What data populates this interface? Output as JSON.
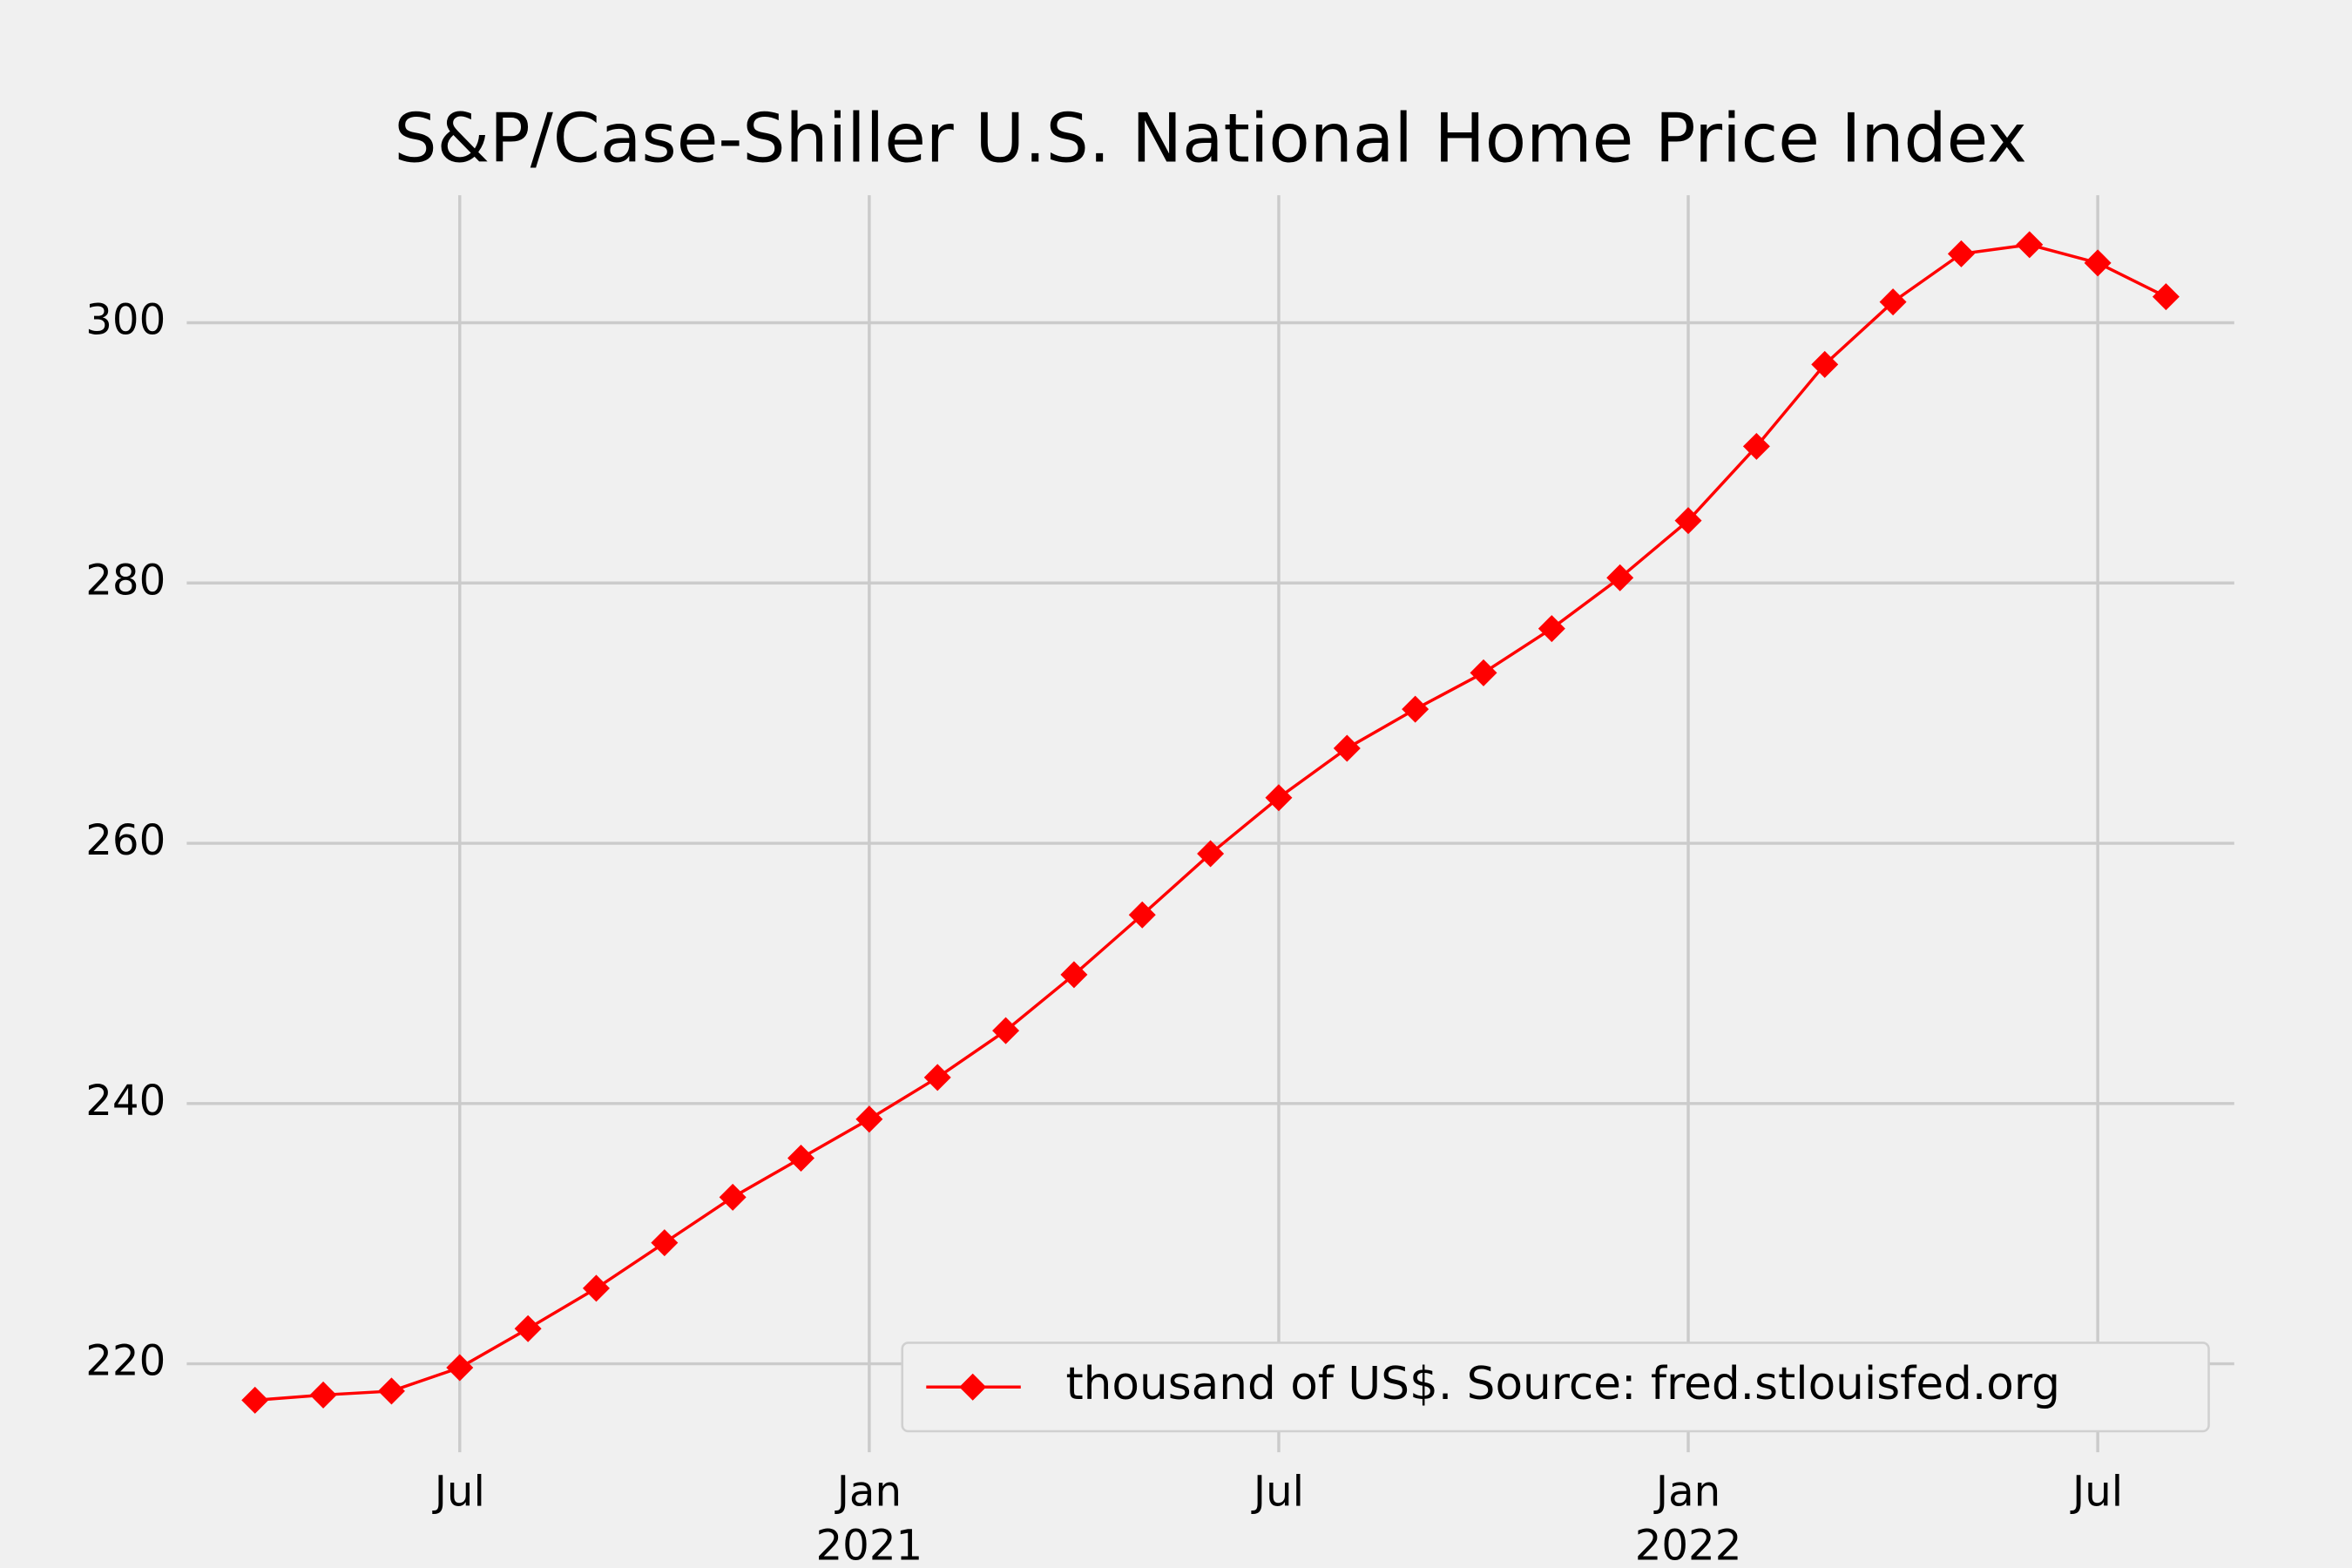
{
  "chart_data": {
    "type": "line",
    "title": "S&P/Case-Shiller U.S. National Home Price Index",
    "x": [
      "2020-04",
      "2020-05",
      "2020-06",
      "2020-07",
      "2020-08",
      "2020-09",
      "2020-10",
      "2020-11",
      "2020-12",
      "2021-01",
      "2021-02",
      "2021-03",
      "2021-04",
      "2021-05",
      "2021-06",
      "2021-07",
      "2021-08",
      "2021-09",
      "2021-10",
      "2021-11",
      "2021-12",
      "2022-01",
      "2022-02",
      "2022-03",
      "2022-04",
      "2022-05",
      "2022-06",
      "2022-07",
      "2022-08"
    ],
    "series": [
      {
        "name": "thousand of US$. Source: fred.stlouisfed.org",
        "color": "#ff0000",
        "values": [
          217.2,
          217.6,
          217.9,
          219.7,
          222.7,
          225.8,
          229.3,
          232.8,
          235.8,
          238.8,
          242.0,
          245.6,
          249.9,
          254.5,
          259.2,
          263.5,
          267.3,
          270.3,
          273.1,
          276.5,
          280.4,
          284.8,
          290.5,
          296.8,
          301.6,
          305.3,
          306.0,
          304.6,
          302.0
        ]
      }
    ],
    "xlim": [
      "2020-03",
      "2022-09"
    ],
    "xticks": [
      {
        "value": "2020-07",
        "label": "Jul"
      },
      {
        "value": "2021-01",
        "label": "Jan",
        "year": "2021"
      },
      {
        "value": "2021-07",
        "label": "Jul"
      },
      {
        "value": "2022-01",
        "label": "Jan",
        "year": "2022"
      },
      {
        "value": "2022-07",
        "label": "Jul"
      }
    ],
    "ylim": [
      213.2,
      309.8
    ],
    "yticks": [
      220,
      240,
      260,
      280,
      300
    ],
    "grid": true,
    "legend": "lower right"
  }
}
